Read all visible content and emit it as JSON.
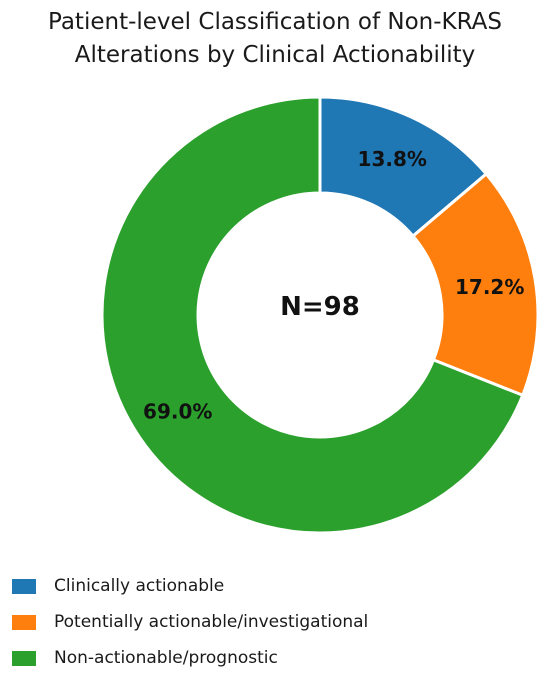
{
  "chart_data": {
    "type": "pie",
    "donut": true,
    "title_lines": [
      "Patient-level Classification of Non-KRAS",
      "Alterations by Clinical Actionability"
    ],
    "center_label": "N=98",
    "slices": [
      {
        "label": "Clinically actionable",
        "value": 13.8,
        "display": "13.8%",
        "color": "#1f77b4"
      },
      {
        "label": "Potentially actionable/investigational",
        "value": 17.2,
        "display": "17.2%",
        "color": "#ff7f0e"
      },
      {
        "label": "Non-actionable/prognostic",
        "value": 69.0,
        "display": "69.0%",
        "color": "#2ca02c"
      }
    ],
    "start_angle": "12 o'clock",
    "direction": "clockwise",
    "legend_position": "bottom-left"
  }
}
